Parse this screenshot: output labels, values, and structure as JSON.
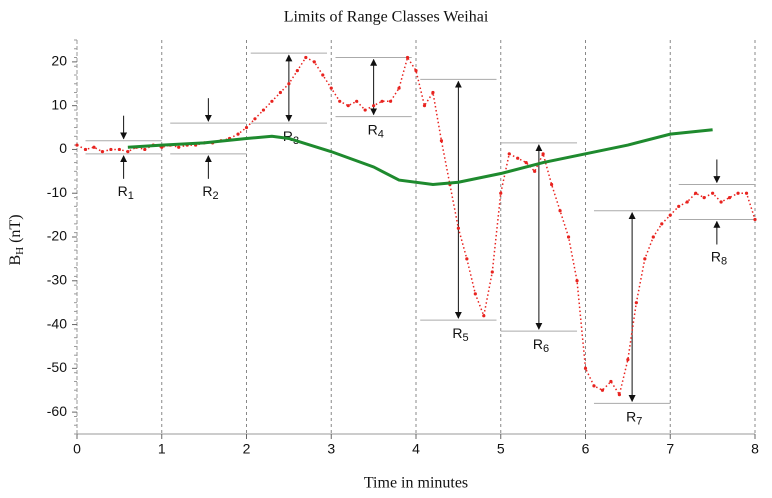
{
  "chart_data": {
    "type": "line",
    "title": "Limits of Range Classes Weihai",
    "xlabel": "Time  in minutes",
    "ylabel": "B",
    "ylabel_sub": "H",
    "ylabel_unit": "(nT)",
    "xlim": [
      0,
      8
    ],
    "ylim": [
      -65,
      25
    ],
    "xticks": [
      0,
      1,
      2,
      3,
      4,
      5,
      6,
      7,
      8
    ],
    "yticks": [
      -60,
      -50,
      -40,
      -30,
      -20,
      -10,
      0,
      10,
      20
    ],
    "grid": true,
    "series": [
      {
        "color": "#e8231f",
        "style": "dots",
        "x": [
          0,
          0.1,
          0.2,
          0.3,
          0.4,
          0.5,
          0.6,
          0.7,
          0.8,
          0.9,
          1.0,
          1.1,
          1.2,
          1.3,
          1.4,
          1.5,
          1.6,
          1.7,
          1.8,
          1.9,
          2.0,
          2.1,
          2.2,
          2.3,
          2.4,
          2.5,
          2.6,
          2.7,
          2.8,
          2.9,
          3.0,
          3.1,
          3.2,
          3.3,
          3.4,
          3.5,
          3.6,
          3.7,
          3.8,
          3.9,
          4.0,
          4.1,
          4.2,
          4.3,
          4.4,
          4.5,
          4.6,
          4.7,
          4.8,
          4.9,
          5.0,
          5.1,
          5.2,
          5.3,
          5.4,
          5.5,
          5.6,
          5.7,
          5.8,
          5.9,
          6.0,
          6.1,
          6.2,
          6.3,
          6.4,
          6.5,
          6.6,
          6.7,
          6.8,
          6.9,
          7.0,
          7.1,
          7.2,
          7.3,
          7.4,
          7.5,
          7.6,
          7.7,
          7.8,
          7.9,
          8.0
        ],
        "values": [
          1,
          0,
          0.5,
          -0.5,
          0,
          0,
          -0.5,
          0.5,
          0,
          1,
          0.5,
          1,
          0.5,
          1,
          1,
          1.5,
          1.5,
          2,
          2.5,
          3.5,
          5,
          7,
          9,
          11,
          13,
          15,
          18,
          21,
          20,
          17,
          14,
          11,
          10,
          11,
          9,
          10,
          11,
          11,
          14,
          21,
          18,
          10,
          13,
          2,
          -8,
          -18,
          -25,
          -33,
          -38,
          -28,
          -10,
          -1,
          -2,
          -3,
          -5,
          -1,
          -8,
          -14,
          -20,
          -30,
          -50,
          -54,
          -55,
          -53,
          -56,
          -48,
          -35,
          -25,
          -20,
          -17,
          -15,
          -13,
          -12,
          -10,
          -11,
          -10,
          -12,
          -11,
          -10,
          -10,
          -16
        ]
      },
      {
        "color": "#1e8a2e",
        "style": "line",
        "x": [
          0.6,
          1.0,
          1.5,
          2.0,
          2.3,
          2.5,
          3.0,
          3.5,
          3.8,
          4.2,
          4.5,
          5.0,
          5.5,
          6.0,
          6.5,
          7.0,
          7.5
        ],
        "values": [
          0.5,
          1,
          1.5,
          2.5,
          3,
          2.5,
          -0.5,
          -4,
          -7,
          -8,
          -7.5,
          -5.5,
          -3,
          -1,
          1,
          3.5,
          4.5
        ]
      }
    ],
    "ranges": [
      {
        "label": "R",
        "sub": "1",
        "x": 0.55,
        "top": 2,
        "bottom": -1
      },
      {
        "label": "R",
        "sub": "2",
        "x": 1.55,
        "top": 6,
        "bottom": -1
      },
      {
        "label": "R",
        "sub": "3",
        "x": 2.5,
        "top": 22,
        "bottom": 6
      },
      {
        "label": "R",
        "sub": "4",
        "x": 3.5,
        "top": 21,
        "bottom": 7.5
      },
      {
        "label": "R",
        "sub": "5",
        "x": 4.5,
        "top": 16,
        "bottom": -39
      },
      {
        "label": "R",
        "sub": "6",
        "x": 5.45,
        "top": 1.5,
        "bottom": -41.5
      },
      {
        "label": "R",
        "sub": "7",
        "x": 6.55,
        "top": -14,
        "bottom": -58
      },
      {
        "label": "R",
        "sub": "8",
        "x": 7.55,
        "top": -8,
        "bottom": -16
      }
    ]
  }
}
